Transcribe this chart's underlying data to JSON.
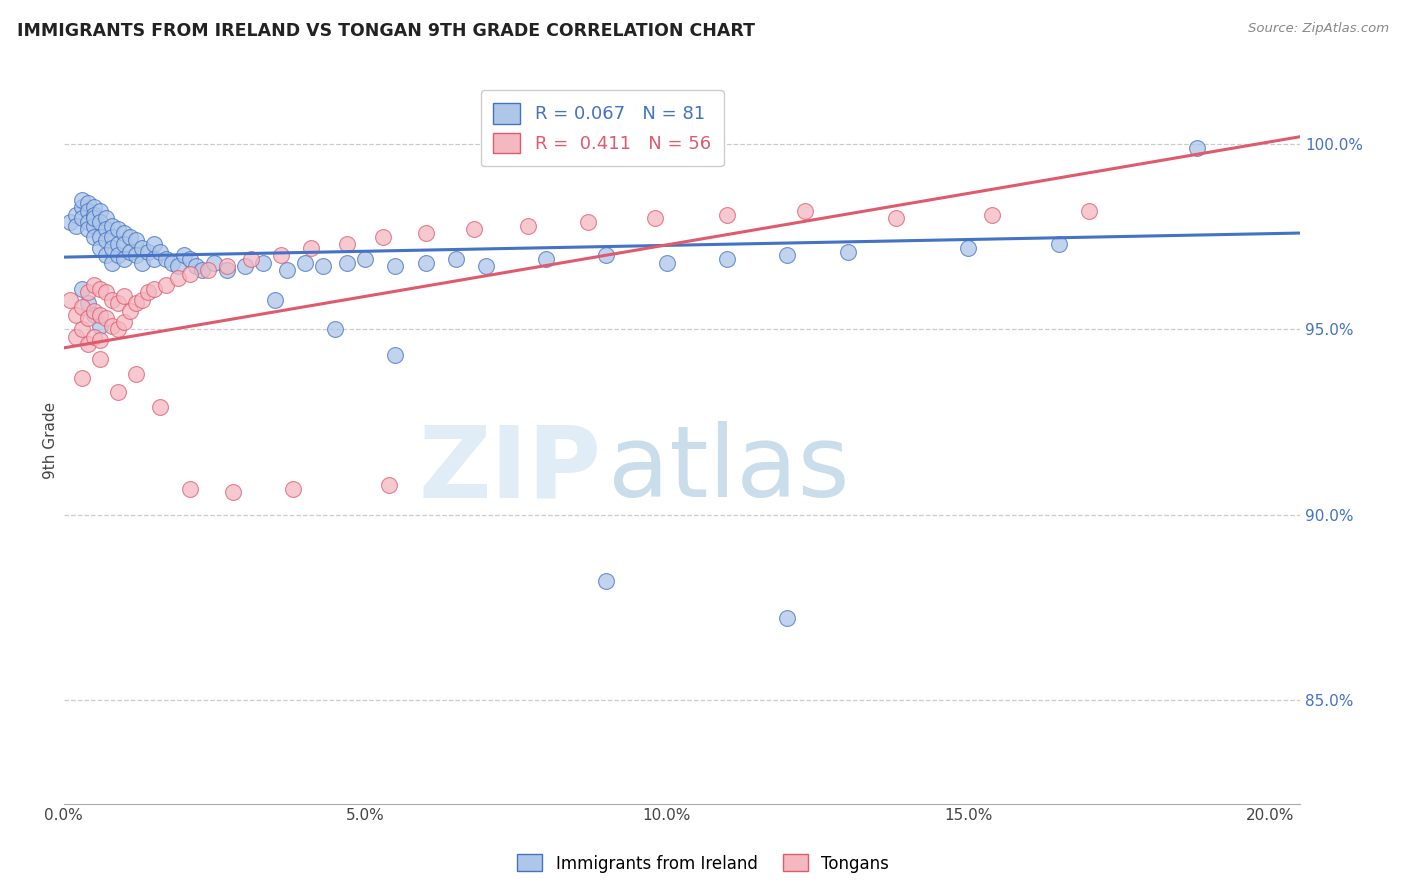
{
  "title": "IMMIGRANTS FROM IRELAND VS TONGAN 9TH GRADE CORRELATION CHART",
  "source": "Source: ZipAtlas.com",
  "xlabel_ticks": [
    "0.0%",
    "5.0%",
    "10.0%",
    "15.0%",
    "20.0%"
  ],
  "xlabel_vals": [
    0.0,
    0.05,
    0.1,
    0.15,
    0.2
  ],
  "ylabel_ticks": [
    "85.0%",
    "90.0%",
    "95.0%",
    "100.0%"
  ],
  "ylabel_vals": [
    0.85,
    0.9,
    0.95,
    1.0
  ],
  "xlim": [
    0.0,
    0.205
  ],
  "ylim": [
    0.822,
    1.018
  ],
  "ylabel": "9th Grade",
  "legend_label1": "Immigrants from Ireland",
  "legend_label2": "Tongans",
  "R1": 0.067,
  "N1": 81,
  "R2": 0.411,
  "N2": 56,
  "blue_color": "#aec6e8",
  "pink_color": "#f4b8c1",
  "line_blue": "#4472c4",
  "line_pink": "#e05a6e",
  "blue_scatter_x": [
    0.001,
    0.002,
    0.002,
    0.003,
    0.003,
    0.003,
    0.004,
    0.004,
    0.004,
    0.004,
    0.005,
    0.005,
    0.005,
    0.005,
    0.005,
    0.006,
    0.006,
    0.006,
    0.006,
    0.007,
    0.007,
    0.007,
    0.007,
    0.008,
    0.008,
    0.008,
    0.008,
    0.009,
    0.009,
    0.009,
    0.01,
    0.01,
    0.01,
    0.011,
    0.011,
    0.012,
    0.012,
    0.013,
    0.013,
    0.014,
    0.015,
    0.015,
    0.016,
    0.017,
    0.018,
    0.019,
    0.02,
    0.021,
    0.022,
    0.023,
    0.025,
    0.027,
    0.03,
    0.033,
    0.037,
    0.04,
    0.043,
    0.047,
    0.05,
    0.055,
    0.06,
    0.065,
    0.07,
    0.08,
    0.09,
    0.1,
    0.11,
    0.12,
    0.13,
    0.15,
    0.165,
    0.003,
    0.004,
    0.005,
    0.006,
    0.035,
    0.045,
    0.055,
    0.09,
    0.12,
    0.188
  ],
  "blue_scatter_y": [
    0.979,
    0.981,
    0.978,
    0.983,
    0.985,
    0.98,
    0.984,
    0.982,
    0.979,
    0.977,
    0.983,
    0.981,
    0.978,
    0.975,
    0.98,
    0.982,
    0.979,
    0.975,
    0.972,
    0.98,
    0.977,
    0.974,
    0.97,
    0.978,
    0.975,
    0.972,
    0.968,
    0.977,
    0.973,
    0.97,
    0.976,
    0.973,
    0.969,
    0.975,
    0.971,
    0.974,
    0.97,
    0.972,
    0.968,
    0.971,
    0.973,
    0.969,
    0.971,
    0.969,
    0.968,
    0.967,
    0.97,
    0.969,
    0.967,
    0.966,
    0.968,
    0.966,
    0.967,
    0.968,
    0.966,
    0.968,
    0.967,
    0.968,
    0.969,
    0.967,
    0.968,
    0.969,
    0.967,
    0.969,
    0.97,
    0.968,
    0.969,
    0.97,
    0.971,
    0.972,
    0.973,
    0.961,
    0.957,
    0.954,
    0.951,
    0.958,
    0.95,
    0.943,
    0.882,
    0.872,
    0.999
  ],
  "pink_scatter_x": [
    0.001,
    0.002,
    0.002,
    0.003,
    0.003,
    0.004,
    0.004,
    0.004,
    0.005,
    0.005,
    0.005,
    0.006,
    0.006,
    0.006,
    0.007,
    0.007,
    0.008,
    0.008,
    0.009,
    0.009,
    0.01,
    0.01,
    0.011,
    0.012,
    0.013,
    0.014,
    0.015,
    0.017,
    0.019,
    0.021,
    0.024,
    0.027,
    0.031,
    0.036,
    0.041,
    0.047,
    0.053,
    0.06,
    0.068,
    0.077,
    0.087,
    0.098,
    0.11,
    0.123,
    0.138,
    0.154,
    0.17,
    0.003,
    0.006,
    0.009,
    0.012,
    0.016,
    0.021,
    0.028,
    0.038,
    0.054
  ],
  "pink_scatter_y": [
    0.958,
    0.954,
    0.948,
    0.956,
    0.95,
    0.96,
    0.953,
    0.946,
    0.962,
    0.955,
    0.948,
    0.961,
    0.954,
    0.947,
    0.96,
    0.953,
    0.958,
    0.951,
    0.957,
    0.95,
    0.959,
    0.952,
    0.955,
    0.957,
    0.958,
    0.96,
    0.961,
    0.962,
    0.964,
    0.965,
    0.966,
    0.967,
    0.969,
    0.97,
    0.972,
    0.973,
    0.975,
    0.976,
    0.977,
    0.978,
    0.979,
    0.98,
    0.981,
    0.982,
    0.98,
    0.981,
    0.982,
    0.937,
    0.942,
    0.933,
    0.938,
    0.929,
    0.907,
    0.906,
    0.907,
    0.908
  ],
  "blue_line_x": [
    0.0,
    0.205
  ],
  "blue_line_y": [
    0.9695,
    0.976
  ],
  "pink_line_x": [
    0.0,
    0.205
  ],
  "pink_line_y": [
    0.945,
    1.002
  ]
}
